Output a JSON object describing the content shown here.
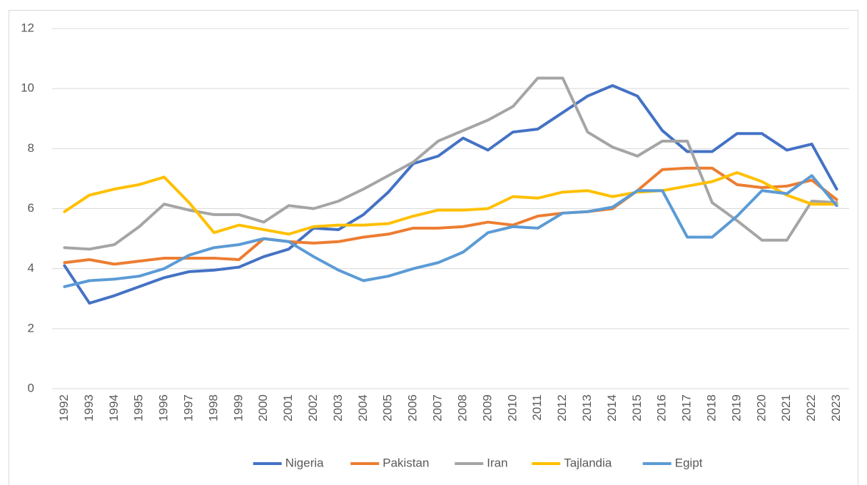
{
  "chart_data": {
    "type": "line",
    "categories": [
      "1992",
      "1993",
      "1994",
      "1995",
      "1996",
      "1997",
      "1998",
      "1999",
      "2000",
      "2001",
      "2002",
      "2003",
      "2004",
      "2005",
      "2006",
      "2007",
      "2008",
      "2009",
      "2010",
      "2011",
      "2012",
      "2013",
      "2014",
      "2015",
      "2016",
      "2017",
      "2018",
      "2019",
      "2020",
      "2021",
      "2022",
      "2023"
    ],
    "series": [
      {
        "name": "Nigeria",
        "color": "#4472c4",
        "values": [
          4.1,
          2.85,
          3.1,
          3.4,
          3.7,
          3.9,
          3.95,
          4.05,
          4.4,
          4.65,
          5.35,
          5.3,
          5.8,
          6.55,
          7.5,
          7.75,
          8.35,
          7.95,
          8.55,
          8.65,
          9.2,
          9.75,
          10.1,
          9.75,
          8.6,
          7.9,
          7.9,
          8.5,
          8.5,
          7.95,
          8.15,
          6.65
        ]
      },
      {
        "name": "Pakistan",
        "color": "#ed7d31",
        "values": [
          4.2,
          4.3,
          4.15,
          4.25,
          4.35,
          4.35,
          4.35,
          4.3,
          5.0,
          4.9,
          4.85,
          4.9,
          5.05,
          5.15,
          5.35,
          5.35,
          5.4,
          5.55,
          5.45,
          5.75,
          5.85,
          5.9,
          6.0,
          6.6,
          7.3,
          7.35,
          7.35,
          6.8,
          6.7,
          6.75,
          6.95,
          6.3
        ]
      },
      {
        "name": "Iran",
        "color": "#a5a5a5",
        "values": [
          4.7,
          4.65,
          4.8,
          5.4,
          6.15,
          5.95,
          5.8,
          5.8,
          5.55,
          6.1,
          6.0,
          6.25,
          6.65,
          7.1,
          7.55,
          8.25,
          8.6,
          8.95,
          9.4,
          10.35,
          10.35,
          8.55,
          8.05,
          7.75,
          8.25,
          8.25,
          6.2,
          5.6,
          4.95,
          4.95,
          6.25,
          6.2
        ]
      },
      {
        "name": "Tajlandia",
        "color": "#ffc000",
        "values": [
          5.9,
          6.45,
          6.65,
          6.8,
          7.05,
          6.2,
          5.2,
          5.45,
          5.3,
          5.15,
          5.4,
          5.45,
          5.45,
          5.5,
          5.75,
          5.95,
          5.95,
          6.0,
          6.4,
          6.35,
          6.55,
          6.6,
          6.4,
          6.55,
          6.6,
          6.75,
          6.9,
          7.2,
          6.9,
          6.45,
          6.15,
          6.15
        ]
      },
      {
        "name": "Egipt",
        "color": "#5b9bd5",
        "values": [
          3.4,
          3.6,
          3.65,
          3.75,
          4.0,
          4.45,
          4.7,
          4.8,
          5.0,
          4.9,
          4.4,
          3.95,
          3.6,
          3.75,
          4.0,
          4.2,
          4.55,
          5.2,
          5.4,
          5.35,
          5.85,
          5.9,
          6.05,
          6.6,
          6.6,
          5.05,
          5.05,
          5.75,
          6.6,
          6.5,
          7.1,
          6.1
        ]
      }
    ],
    "ylim": [
      0,
      12
    ],
    "yticks": [
      0,
      2,
      4,
      6,
      8,
      10,
      12
    ],
    "grid": true,
    "legend": "bottom"
  }
}
